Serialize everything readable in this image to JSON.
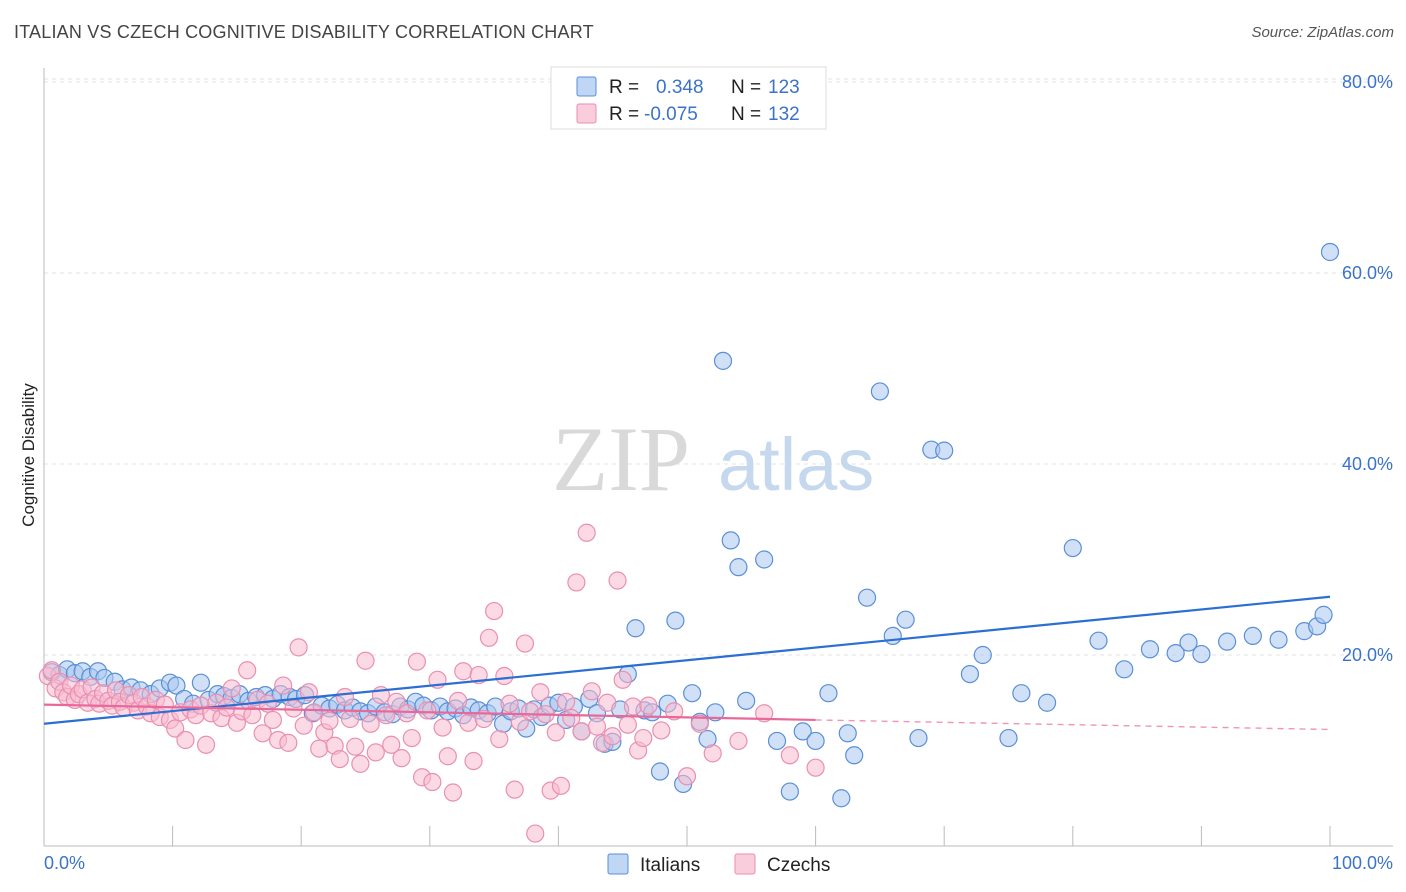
{
  "title": "ITALIAN VS CZECH COGNITIVE DISABILITY CORRELATION CHART",
  "source": "Source: ZipAtlas.com",
  "watermark": {
    "zip": "ZIP",
    "atlas": "atlas"
  },
  "legend_top": {
    "r_label": "R =",
    "n_label": "N =",
    "rows": [
      {
        "r": "0.348",
        "n": "123"
      },
      {
        "r": "-0.075",
        "n": "132"
      }
    ]
  },
  "legend_bottom": [
    "Italians",
    "Czechs"
  ],
  "colors": {
    "italians_fill": "#a9c8f0",
    "italians_stroke": "#5b8fd6",
    "italians_line": "#2a6fd1",
    "czechs_fill": "#f7bcd0",
    "czechs_stroke": "#ea8fb0",
    "czechs_line": "#e8689a",
    "tick_text": "#3b73c8"
  },
  "chart_data": {
    "type": "scatter",
    "title": "ITALIAN VS CZECH COGNITIVE DISABILITY CORRELATION CHART",
    "xlabel": "",
    "ylabel": "Cognitive Disability",
    "xlim": [
      0,
      100
    ],
    "ylim": [
      0,
      82
    ],
    "x_tick_labels": [
      "0.0%",
      "100.0%"
    ],
    "y_ticks": [
      20,
      40,
      60,
      80
    ],
    "y_tick_labels": [
      "20.0%",
      "40.0%",
      "60.0%",
      "80.0%"
    ],
    "grid": true,
    "legend_position": "top-center",
    "series": [
      {
        "name": "Italians",
        "r": 0.348,
        "n": 123,
        "trend": {
          "x": [
            0,
            100
          ],
          "y": [
            12.8,
            26.1
          ]
        },
        "points": [
          [
            0.6,
            18.2
          ],
          [
            1.2,
            17.9
          ],
          [
            1.8,
            18.5
          ],
          [
            2.4,
            18.1
          ],
          [
            3.0,
            18.3
          ],
          [
            3.6,
            17.7
          ],
          [
            4.2,
            18.3
          ],
          [
            4.7,
            17.6
          ],
          [
            5.5,
            17.2
          ],
          [
            6.1,
            16.4
          ],
          [
            6.8,
            16.6
          ],
          [
            7.5,
            16.3
          ],
          [
            8.3,
            15.9
          ],
          [
            9.0,
            16.5
          ],
          [
            9.8,
            17.1
          ],
          [
            10.3,
            16.8
          ],
          [
            10.9,
            15.4
          ],
          [
            11.6,
            14.9
          ],
          [
            12.2,
            17.1
          ],
          [
            12.8,
            15.3
          ],
          [
            13.5,
            15.9
          ],
          [
            14.0,
            15.7
          ],
          [
            14.6,
            15.5
          ],
          [
            15.2,
            15.9
          ],
          [
            15.9,
            15.2
          ],
          [
            16.5,
            15.6
          ],
          [
            17.2,
            15.8
          ],
          [
            17.8,
            15.4
          ],
          [
            18.4,
            15.9
          ],
          [
            19.1,
            15.6
          ],
          [
            19.6,
            15.4
          ],
          [
            20.3,
            15.8
          ],
          [
            20.9,
            13.9
          ],
          [
            21.6,
            14.7
          ],
          [
            22.2,
            14.4
          ],
          [
            22.8,
            14.8
          ],
          [
            23.4,
            14.2
          ],
          [
            24.0,
            14.5
          ],
          [
            24.6,
            14.1
          ],
          [
            25.2,
            13.9
          ],
          [
            25.8,
            14.6
          ],
          [
            26.5,
            14.0
          ],
          [
            27.1,
            13.8
          ],
          [
            27.7,
            14.6
          ],
          [
            28.3,
            14.3
          ],
          [
            28.9,
            15.1
          ],
          [
            29.5,
            14.7
          ],
          [
            30.1,
            14.2
          ],
          [
            30.8,
            14.6
          ],
          [
            31.4,
            14.1
          ],
          [
            32.0,
            14.4
          ],
          [
            32.6,
            13.7
          ],
          [
            33.2,
            14.5
          ],
          [
            33.8,
            14.2
          ],
          [
            34.5,
            13.9
          ],
          [
            35.1,
            14.6
          ],
          [
            35.7,
            12.8
          ],
          [
            36.3,
            14.1
          ],
          [
            36.9,
            14.4
          ],
          [
            37.5,
            12.3
          ],
          [
            38.1,
            14.3
          ],
          [
            38.7,
            13.5
          ],
          [
            39.3,
            14.7
          ],
          [
            40.0,
            15.0
          ],
          [
            40.6,
            13.2
          ],
          [
            41.2,
            14.6
          ],
          [
            41.8,
            12.0
          ],
          [
            42.4,
            15.4
          ],
          [
            43.0,
            13.9
          ],
          [
            43.6,
            10.7
          ],
          [
            44.2,
            10.9
          ],
          [
            44.8,
            14.3
          ],
          [
            45.4,
            18.0
          ],
          [
            46.0,
            22.8
          ],
          [
            46.7,
            14.2
          ],
          [
            47.3,
            14.0
          ],
          [
            47.9,
            7.8
          ],
          [
            48.5,
            14.9
          ],
          [
            49.1,
            23.6
          ],
          [
            49.7,
            6.5
          ],
          [
            50.4,
            16.0
          ],
          [
            51.0,
            13.0
          ],
          [
            51.6,
            11.2
          ],
          [
            52.2,
            14.0
          ],
          [
            52.8,
            50.8
          ],
          [
            53.4,
            32.0
          ],
          [
            54.0,
            29.2
          ],
          [
            54.6,
            15.2
          ],
          [
            56.0,
            30.0
          ],
          [
            57.0,
            11.0
          ],
          [
            58.0,
            5.7
          ],
          [
            59.0,
            12.0
          ],
          [
            60.0,
            11.0
          ],
          [
            61.0,
            16.0
          ],
          [
            62.0,
            5.0
          ],
          [
            62.5,
            11.8
          ],
          [
            63.0,
            9.5
          ],
          [
            64.0,
            26.0
          ],
          [
            65.0,
            47.6
          ],
          [
            66.0,
            22.0
          ],
          [
            67.0,
            23.7
          ],
          [
            68.0,
            11.3
          ],
          [
            69.0,
            41.5
          ],
          [
            70.0,
            41.4
          ],
          [
            72.0,
            18.0
          ],
          [
            73.0,
            20.0
          ],
          [
            75.0,
            11.3
          ],
          [
            76.0,
            16.0
          ],
          [
            78.0,
            15.0
          ],
          [
            80.0,
            31.2
          ],
          [
            82.0,
            21.5
          ],
          [
            84.0,
            18.5
          ],
          [
            86.0,
            20.6
          ],
          [
            88.0,
            20.2
          ],
          [
            89.0,
            21.3
          ],
          [
            90.0,
            20.1
          ],
          [
            92.0,
            21.4
          ],
          [
            94.0,
            22.0
          ],
          [
            96.0,
            21.6
          ],
          [
            98.0,
            22.5
          ],
          [
            99.0,
            23.0
          ],
          [
            99.5,
            24.2
          ],
          [
            100.0,
            62.2
          ]
        ]
      },
      {
        "name": "Czechs",
        "r": -0.075,
        "n": 132,
        "trend": {
          "x": [
            0,
            60
          ],
          "y": [
            14.8,
            13.2
          ]
        },
        "trend_dashed": {
          "x": [
            60,
            100
          ],
          "y": [
            13.2,
            12.2
          ]
        },
        "points": [
          [
            0.3,
            17.8
          ],
          [
            0.6,
            18.4
          ],
          [
            0.9,
            16.5
          ],
          [
            1.2,
            17.2
          ],
          [
            1.5,
            16.1
          ],
          [
            1.8,
            15.6
          ],
          [
            2.1,
            16.8
          ],
          [
            2.4,
            15.3
          ],
          [
            2.7,
            15.9
          ],
          [
            3.0,
            16.4
          ],
          [
            3.4,
            15.0
          ],
          [
            3.7,
            16.6
          ],
          [
            4.0,
            15.4
          ],
          [
            4.3,
            14.9
          ],
          [
            4.6,
            16.0
          ],
          [
            5.0,
            15.2
          ],
          [
            5.3,
            14.7
          ],
          [
            5.6,
            16.3
          ],
          [
            5.9,
            15.1
          ],
          [
            6.2,
            14.5
          ],
          [
            6.6,
            15.8
          ],
          [
            7.0,
            15.0
          ],
          [
            7.3,
            14.2
          ],
          [
            7.6,
            15.6
          ],
          [
            8.0,
            14.6
          ],
          [
            8.3,
            13.9
          ],
          [
            8.7,
            15.3
          ],
          [
            9.0,
            13.5
          ],
          [
            9.4,
            14.8
          ],
          [
            9.8,
            13.2
          ],
          [
            10.2,
            12.3
          ],
          [
            10.6,
            14.0
          ],
          [
            11.0,
            11.1
          ],
          [
            11.4,
            14.3
          ],
          [
            11.8,
            13.7
          ],
          [
            12.2,
            14.7
          ],
          [
            12.6,
            10.6
          ],
          [
            13.0,
            13.9
          ],
          [
            13.4,
            15.0
          ],
          [
            13.8,
            13.4
          ],
          [
            14.2,
            14.5
          ],
          [
            14.6,
            16.5
          ],
          [
            15.0,
            12.9
          ],
          [
            15.4,
            14.1
          ],
          [
            15.8,
            18.4
          ],
          [
            16.2,
            13.7
          ],
          [
            16.6,
            15.3
          ],
          [
            17.0,
            11.8
          ],
          [
            17.4,
            14.9
          ],
          [
            17.8,
            13.2
          ],
          [
            18.2,
            11.1
          ],
          [
            18.6,
            16.8
          ],
          [
            19.0,
            10.8
          ],
          [
            19.4,
            14.4
          ],
          [
            19.8,
            20.8
          ],
          [
            20.2,
            12.6
          ],
          [
            20.6,
            16.1
          ],
          [
            21.0,
            14.0
          ],
          [
            21.4,
            10.2
          ],
          [
            21.8,
            11.9
          ],
          [
            22.2,
            13.1
          ],
          [
            22.6,
            10.5
          ],
          [
            23.0,
            9.1
          ],
          [
            23.4,
            15.6
          ],
          [
            23.8,
            13.3
          ],
          [
            24.2,
            10.4
          ],
          [
            24.6,
            8.6
          ],
          [
            25.0,
            19.4
          ],
          [
            25.4,
            12.8
          ],
          [
            25.8,
            9.8
          ],
          [
            26.2,
            15.8
          ],
          [
            26.6,
            13.7
          ],
          [
            27.0,
            10.6
          ],
          [
            27.4,
            15.1
          ],
          [
            27.8,
            9.2
          ],
          [
            28.2,
            13.9
          ],
          [
            28.6,
            11.3
          ],
          [
            29.0,
            19.3
          ],
          [
            29.4,
            7.2
          ],
          [
            29.8,
            14.2
          ],
          [
            30.2,
            6.7
          ],
          [
            30.6,
            17.4
          ],
          [
            31.0,
            12.4
          ],
          [
            31.4,
            9.4
          ],
          [
            31.8,
            5.6
          ],
          [
            32.2,
            15.2
          ],
          [
            32.6,
            18.3
          ],
          [
            33.0,
            12.9
          ],
          [
            33.4,
            8.9
          ],
          [
            33.8,
            17.9
          ],
          [
            34.2,
            13.3
          ],
          [
            34.6,
            21.8
          ],
          [
            35.0,
            24.6
          ],
          [
            35.4,
            11.2
          ],
          [
            35.8,
            17.8
          ],
          [
            36.2,
            14.9
          ],
          [
            36.6,
            5.9
          ],
          [
            37.0,
            13.0
          ],
          [
            37.4,
            21.2
          ],
          [
            37.8,
            14.1
          ],
          [
            38.2,
            1.3
          ],
          [
            38.6,
            16.1
          ],
          [
            39.0,
            13.8
          ],
          [
            39.4,
            5.8
          ],
          [
            39.8,
            11.9
          ],
          [
            40.2,
            6.3
          ],
          [
            40.6,
            15.1
          ],
          [
            41.0,
            13.4
          ],
          [
            41.4,
            27.6
          ],
          [
            41.8,
            12.0
          ],
          [
            42.2,
            32.8
          ],
          [
            42.6,
            16.2
          ],
          [
            43.0,
            12.5
          ],
          [
            43.4,
            10.8
          ],
          [
            43.8,
            15.0
          ],
          [
            44.2,
            11.5
          ],
          [
            44.6,
            27.8
          ],
          [
            45.0,
            17.4
          ],
          [
            45.4,
            12.7
          ],
          [
            45.8,
            14.6
          ],
          [
            46.2,
            10.0
          ],
          [
            46.6,
            11.3
          ],
          [
            47.0,
            14.7
          ],
          [
            48.0,
            12.1
          ],
          [
            49.0,
            14.1
          ],
          [
            50.0,
            7.3
          ],
          [
            51.0,
            12.8
          ],
          [
            52.0,
            9.7
          ],
          [
            54.0,
            11.0
          ],
          [
            56.0,
            13.9
          ],
          [
            58.0,
            9.5
          ],
          [
            60.0,
            8.2
          ]
        ]
      }
    ]
  }
}
